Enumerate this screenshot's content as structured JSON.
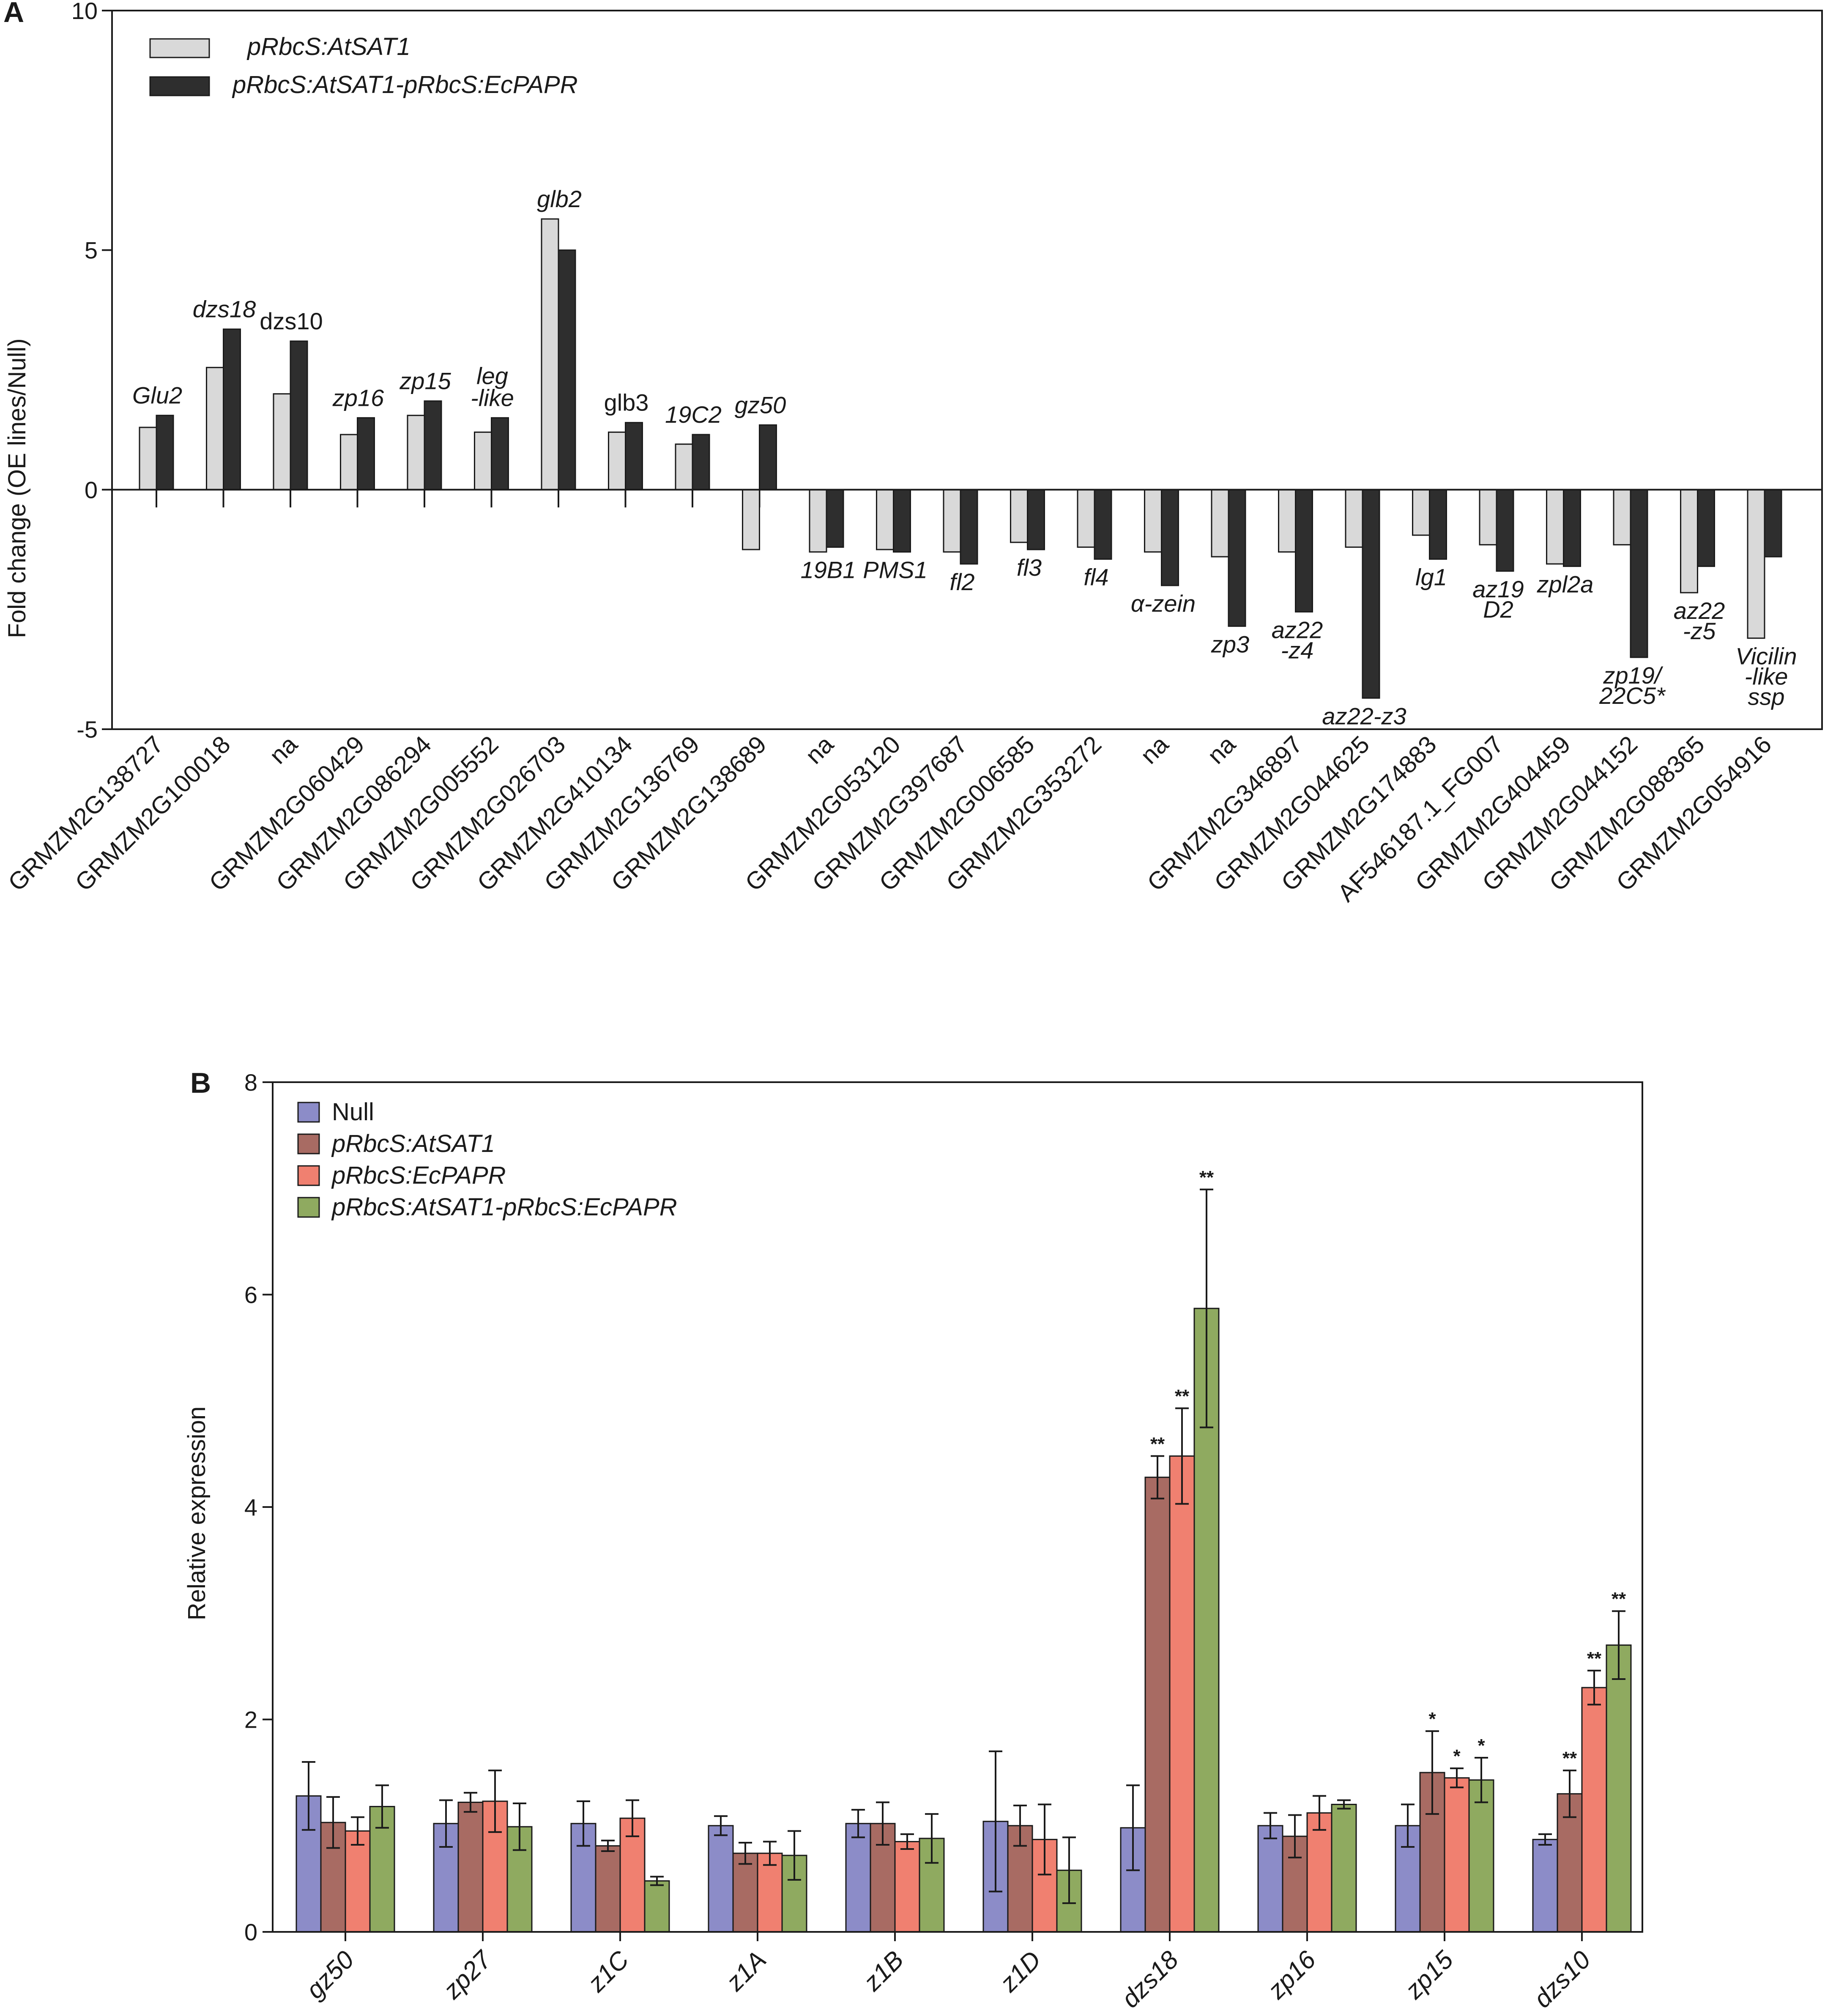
{
  "chart_data": [
    {
      "panel": "A",
      "type": "bar",
      "ylabel": "Fold change (OE lines/Null)",
      "ylim": [
        -5,
        10
      ],
      "yticks": [
        "10",
        "5",
        "0",
        "-5"
      ],
      "legend_position": "top-left",
      "categories": [
        "GRMZM2G138727",
        "GRMZM2G100018",
        "na",
        "GRMZM2G060429",
        "GRMZM2G086294",
        "GRMZM2G005552",
        "GRMZM2G026703",
        "GRMZM2G410134",
        "GRMZM2G136769",
        "GRMZM2G138689",
        "na",
        "GRMZM2G053120",
        "GRMZM2G397687",
        "GRMZM2G006585",
        "GRMZM2G353272",
        "na",
        "na",
        "GRMZM2G346897",
        "GRMZM2G044625",
        "GRMZM2G174883",
        "AF546187.1_FG007",
        "GRMZM2G404459",
        "GRMZM2G044152",
        "GRMZM2G088365",
        "GRMZM2G054916"
      ],
      "gene_names": [
        [
          "Glu2"
        ],
        [
          "dzs18"
        ],
        [
          "dzs10"
        ],
        [
          "zp16"
        ],
        [
          "zp15"
        ],
        [
          "leg",
          "-like"
        ],
        [
          "glb2"
        ],
        [
          "glb3"
        ],
        [
          "19C2"
        ],
        [
          "gz50"
        ],
        [
          "19B1"
        ],
        [
          "PMS1"
        ],
        [
          "fl2"
        ],
        [
          "fl3"
        ],
        [
          "fl4"
        ],
        [
          "α-zein"
        ],
        [
          "zp3"
        ],
        [
          "az22",
          "-z4"
        ],
        [
          "az22-z3"
        ],
        [
          "lg1"
        ],
        [
          "az19",
          "D2"
        ],
        [
          "zpl2a"
        ],
        [
          "zp19/",
          "22C5*"
        ],
        [
          "az22",
          "-z5"
        ],
        [
          "Vicilin",
          "-like",
          "ssp"
        ]
      ],
      "series": [
        {
          "name": "pRbcS:AtSAT1",
          "color": "#d9d9d9",
          "values": [
            1.3,
            2.55,
            2.0,
            1.15,
            1.55,
            1.2,
            5.65,
            1.2,
            0.95,
            -1.25,
            -1.3,
            -1.25,
            -1.3,
            -1.1,
            -1.2,
            -1.3,
            -1.4,
            -1.3,
            -1.2,
            -0.95,
            -1.15,
            -1.55,
            -1.15,
            -2.15,
            -3.1
          ]
        },
        {
          "name": "pRbcS:AtSAT1-pRbcS:EcPAPR",
          "color": "#2e2e2e",
          "values": [
            1.55,
            3.35,
            3.1,
            1.5,
            1.85,
            1.5,
            5.0,
            1.4,
            1.15,
            1.35,
            -1.2,
            -1.3,
            -1.55,
            -1.25,
            -1.45,
            -2.0,
            -2.85,
            -2.55,
            -4.35,
            -1.45,
            -1.7,
            -1.6,
            -3.5,
            -1.6,
            -1.4
          ]
        }
      ]
    },
    {
      "panel": "B",
      "type": "bar",
      "ylabel": "Relative expression",
      "ylim": [
        0,
        8
      ],
      "yticks": [
        "0",
        "2",
        "4",
        "6",
        "8"
      ],
      "legend_position": "top-left",
      "categories": [
        "gz50",
        "zp27",
        "z1C",
        "z1A",
        "z1B",
        "z1D",
        "dzs18",
        "zp16",
        "zp15",
        "dzs10"
      ],
      "series": [
        {
          "name": "Null",
          "color": "#8c8cc8",
          "values": [
            1.28,
            1.02,
            1.02,
            1.0,
            1.02,
            1.04,
            0.98,
            1.0,
            1.0,
            0.87
          ],
          "errors": [
            0.32,
            0.22,
            0.21,
            0.09,
            0.13,
            0.66,
            0.4,
            0.12,
            0.2,
            0.05
          ],
          "sig": [
            "",
            "",
            "",
            "",
            "",
            "",
            "",
            "",
            "",
            ""
          ]
        },
        {
          "name": "pRbcS:AtSAT1",
          "color": "#a86b63",
          "values": [
            1.03,
            1.22,
            0.81,
            0.74,
            1.02,
            1.0,
            4.28,
            0.9,
            1.5,
            1.3
          ],
          "errors": [
            0.24,
            0.09,
            0.05,
            0.1,
            0.2,
            0.19,
            0.2,
            0.2,
            0.39,
            0.22
          ],
          "sig": [
            "",
            "",
            "",
            "",
            "",
            "",
            "**",
            "",
            "*",
            "**"
          ]
        },
        {
          "name": "pRbcS:EcPAPR",
          "color": "#f08070",
          "values": [
            0.95,
            1.23,
            1.07,
            0.74,
            0.85,
            0.87,
            4.48,
            1.12,
            1.45,
            2.3
          ],
          "errors": [
            0.13,
            0.29,
            0.17,
            0.11,
            0.07,
            0.33,
            0.45,
            0.16,
            0.09,
            0.16
          ],
          "sig": [
            "",
            "",
            "",
            "",
            "",
            "",
            "**",
            "",
            "*",
            "**"
          ]
        },
        {
          "name": "pRbcS:AtSAT1-pRbcS:EcPAPR",
          "color": "#8faa60",
          "values": [
            1.18,
            0.99,
            0.48,
            0.72,
            0.88,
            0.58,
            5.87,
            1.2,
            1.43,
            2.7
          ],
          "errors": [
            0.2,
            0.22,
            0.04,
            0.23,
            0.23,
            0.31,
            1.12,
            0.04,
            0.21,
            0.32
          ],
          "sig": [
            "",
            "",
            "",
            "",
            "",
            "",
            "**",
            "",
            "*",
            "**"
          ]
        }
      ]
    }
  ]
}
